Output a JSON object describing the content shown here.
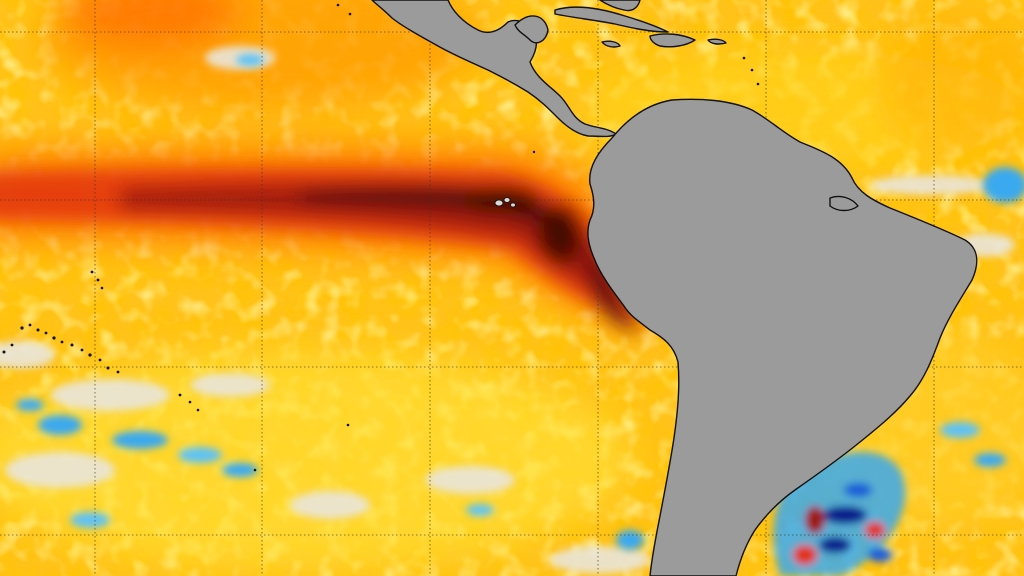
{
  "map": {
    "type": "sea-surface-temperature-anomaly",
    "region": "eastern-pacific-and-south-america",
    "colors": {
      "land": "#9b9b9b",
      "coastline": "#000000",
      "gridlines": "#333333",
      "neutral": "#e6e2d8",
      "warm_light": "#ffe53b",
      "warm": "#ffb400",
      "warm_strong": "#ff7a00",
      "hot": "#e83a10",
      "very_hot": "#9e1a0c",
      "extreme": "#4a0d08",
      "cool_light": "#9fdcff",
      "cool": "#3aa9ef",
      "cool_strong": "#1b5bd8",
      "cold": "#0b1f8a"
    },
    "grid_visible": true,
    "features": [
      "warm-equatorial-tongue",
      "warm-coastal-peru",
      "cold-patches-southwest-atlantic"
    ]
  }
}
